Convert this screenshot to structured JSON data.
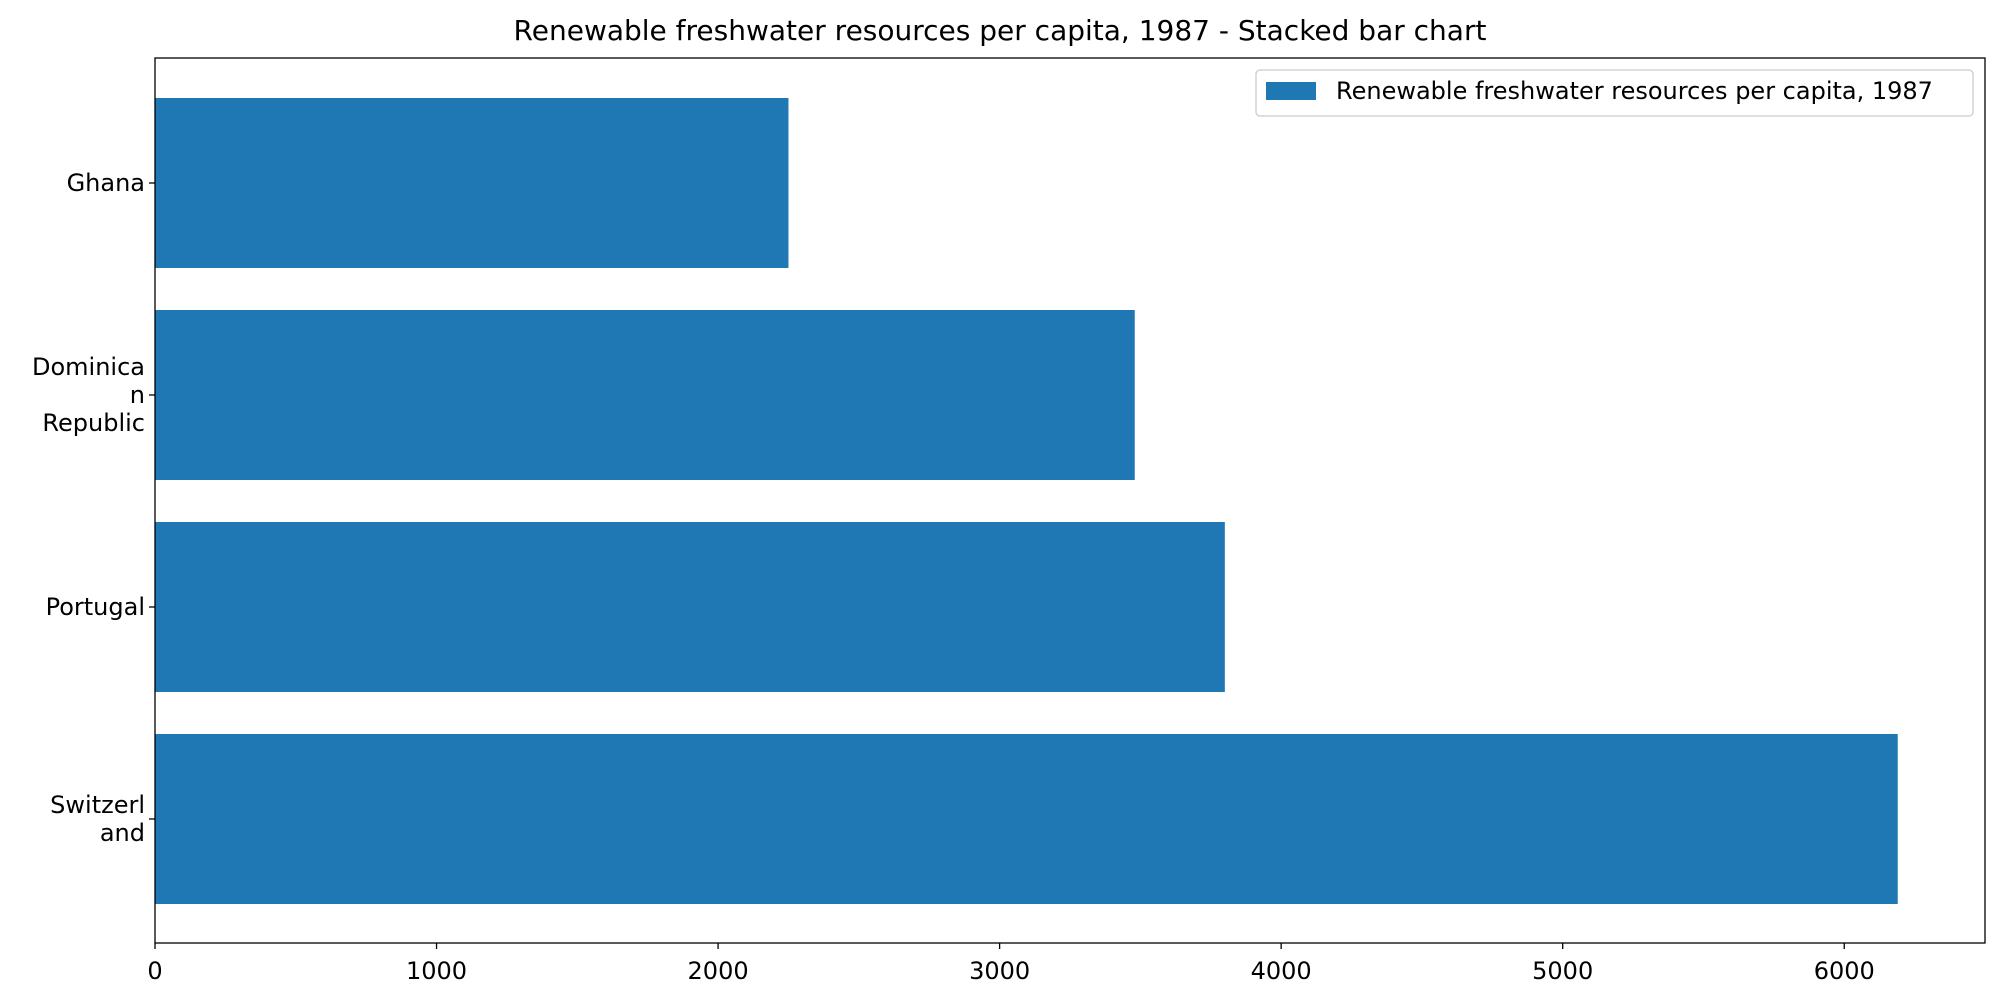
{
  "chart_data": {
    "type": "bar",
    "orientation": "horizontal",
    "title": "Renewable freshwater resources per capita, 1987 - Stacked bar chart",
    "xlabel": "",
    "ylabel": "",
    "categories": [
      "Ghana",
      "Dominican Republic",
      "Portugal",
      "Switzerland"
    ],
    "category_tick_lines": [
      [
        "Ghana"
      ],
      [
        "Dominica",
        "n",
        "Republic"
      ],
      [
        "Portugal"
      ],
      [
        "Switzerl",
        "and"
      ]
    ],
    "series": [
      {
        "name": "Renewable freshwater resources per capita, 1987",
        "values": [
          2250,
          3480,
          3800,
          6190
        ]
      }
    ],
    "xlim": [
      0,
      6500
    ],
    "xticks": [
      0,
      1000,
      2000,
      3000,
      4000,
      5000,
      6000
    ],
    "xtick_labels": [
      "0",
      "1000",
      "2000",
      "3000",
      "4000",
      "5000",
      "6000"
    ],
    "grid": false,
    "legend_position": "top-right",
    "colors": {
      "series": "#1f77b4",
      "axis": "#000000",
      "legend_border": "#cccccc"
    }
  }
}
